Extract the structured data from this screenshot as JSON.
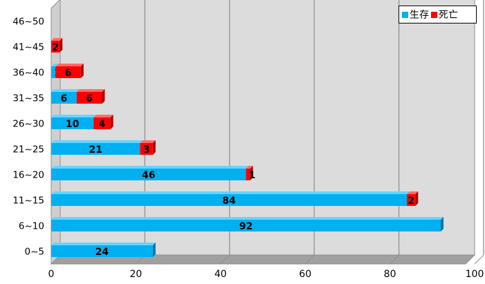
{
  "chart_data": {
    "type": "bar",
    "orientation": "horizontal",
    "stacked": true,
    "categories": [
      "0~5",
      "6~10",
      "11~15",
      "16~20",
      "21~25",
      "26~30",
      "31~35",
      "36~40",
      "41~45",
      "46~50"
    ],
    "series": [
      {
        "name": "生存",
        "color": "#00b0f0",
        "values": [
          24,
          92,
          84,
          46,
          21,
          10,
          6,
          1,
          0,
          0
        ]
      },
      {
        "name": "死亡",
        "color": "#ff0000",
        "values": [
          0,
          0,
          2,
          1,
          3,
          4,
          6,
          6,
          2,
          0
        ]
      }
    ],
    "xlim": [
      0,
      100
    ],
    "x_ticks": [
      0,
      20,
      40,
      60,
      80,
      100
    ],
    "grid": true,
    "legend_position": "top-right",
    "data_labels": true
  }
}
